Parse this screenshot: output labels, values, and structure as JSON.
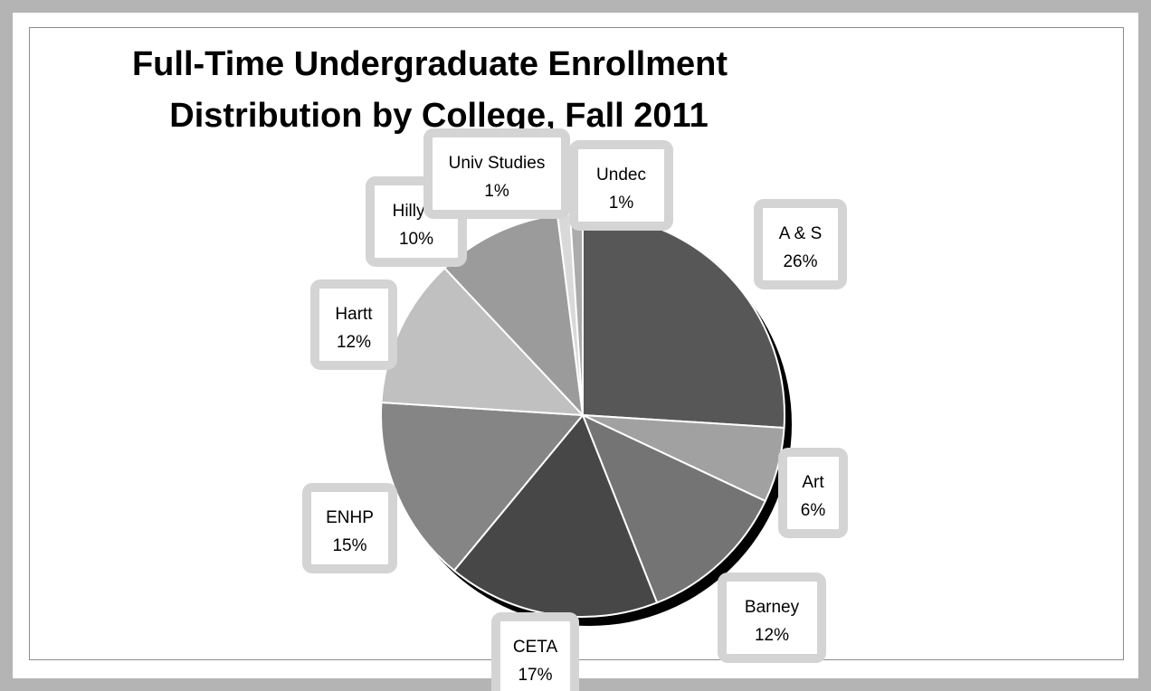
{
  "chart_data": {
    "type": "pie",
    "title": "Full-Time Undergraduate Enrollment Distribution by College, Fall 2011",
    "title_lines": [
      "Full-Time Undergraduate Enrollment",
      "Distribution by College, Fall 2011"
    ],
    "slices": [
      {
        "label": "A & S",
        "value": 26,
        "display": "26%",
        "color": "#575757"
      },
      {
        "label": "Art",
        "value": 6,
        "display": "6%",
        "color": "#a1a1a1"
      },
      {
        "label": "Barney",
        "value": 12,
        "display": "12%",
        "color": "#747474"
      },
      {
        "label": "CETA",
        "value": 17,
        "display": "17%",
        "color": "#474747"
      },
      {
        "label": "ENHP",
        "value": 15,
        "display": "15%",
        "color": "#858585"
      },
      {
        "label": "Hartt",
        "value": 12,
        "display": "12%",
        "color": "#c0c0c0"
      },
      {
        "label": "Hillyer",
        "value": 10,
        "display": "10%",
        "color": "#9b9b9b"
      },
      {
        "label": "Univ Studies",
        "value": 1,
        "display": "1%",
        "color": "#d9d9d9"
      },
      {
        "label": "Undec",
        "value": 1,
        "display": "1%",
        "color": "#ababab"
      }
    ],
    "legend": "none",
    "data_labels": "category name and percentage"
  }
}
